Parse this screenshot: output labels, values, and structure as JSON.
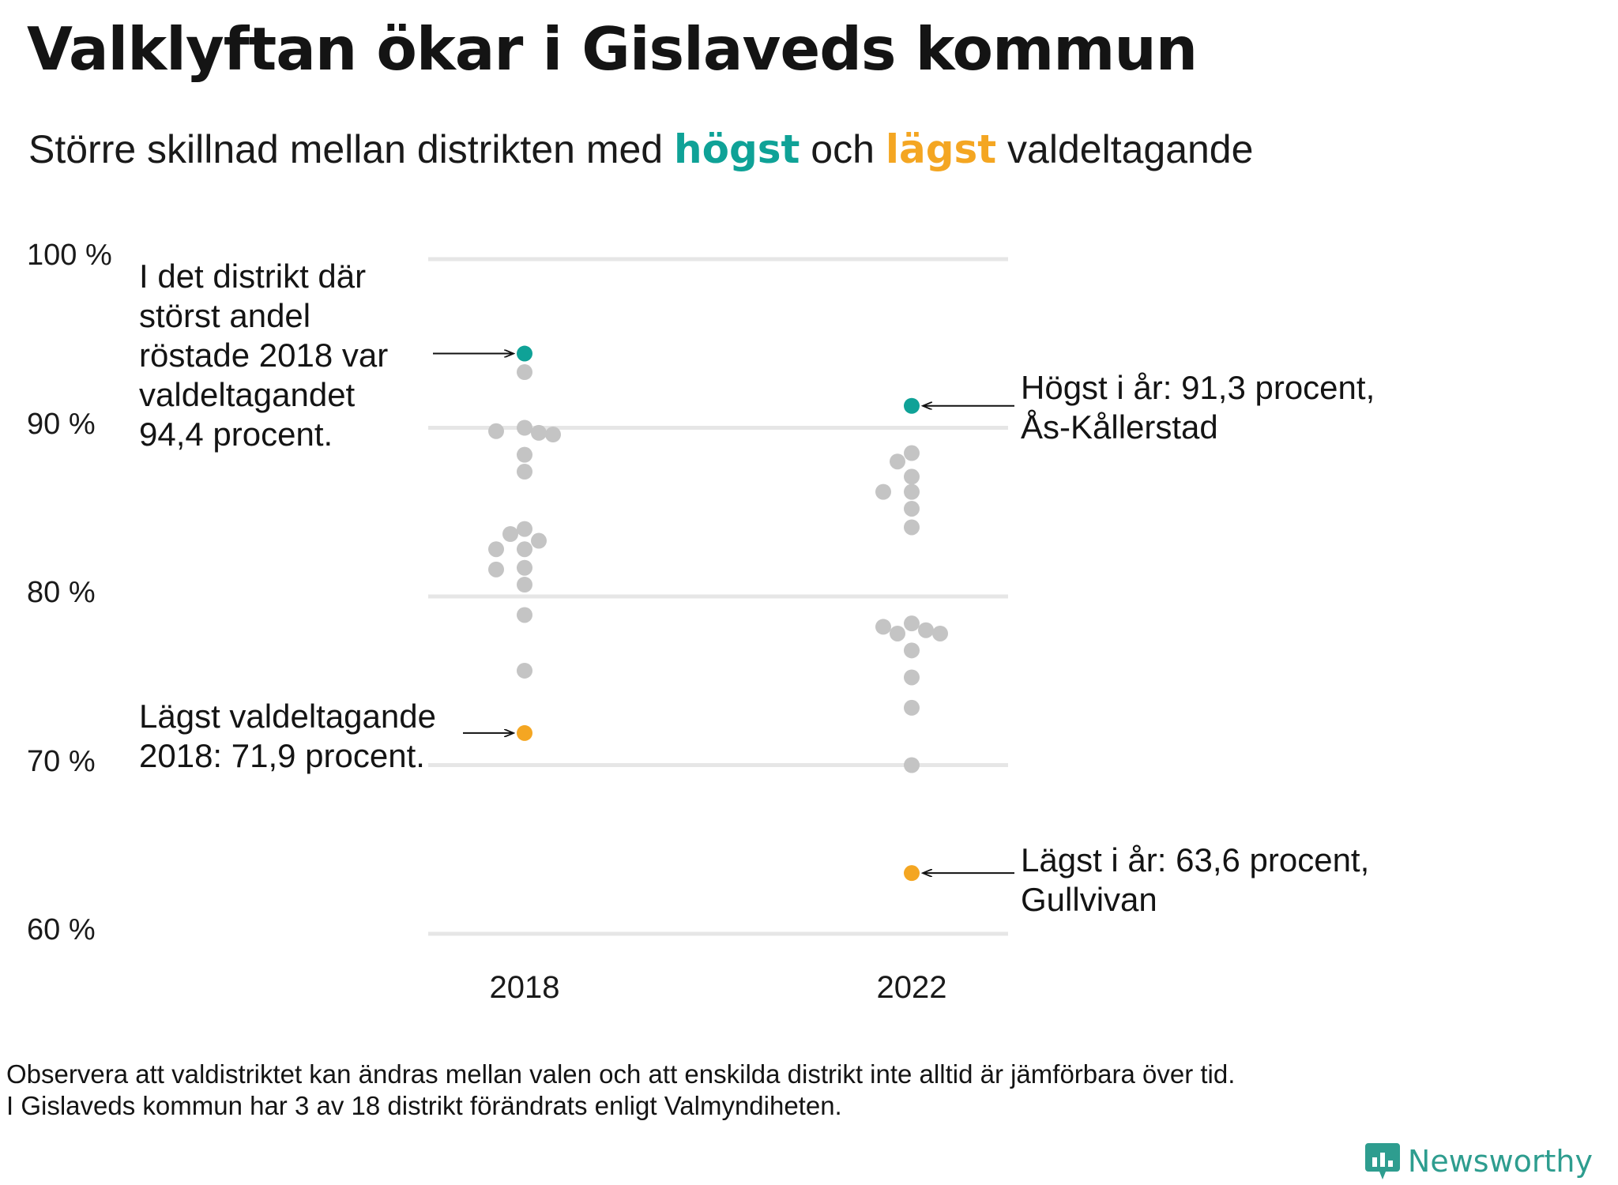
{
  "title": "Valklyftan ökar i Gislaveds kommun",
  "subtitle": {
    "prefix": "Större skillnad mellan distrikten med ",
    "highest": "högst",
    "middle": " och ",
    "lowest": "lägst",
    "suffix": " valdeltagande"
  },
  "chart_data": {
    "type": "scatter",
    "title": "Valklyftan ökar i Gislaveds kommun",
    "ylim": [
      60,
      100
    ],
    "yticks": [
      60,
      70,
      80,
      90,
      100
    ],
    "ytick_labels": [
      "60 %",
      "70 %",
      "80 %",
      "90 %",
      "100 %"
    ],
    "categories": [
      "2018",
      "2022"
    ],
    "grid": true,
    "colors": {
      "highest": "#0fa297",
      "lowest": "#f4a622",
      "other": "#c4c4c4",
      "grid": "#e6e6e6"
    },
    "series": [
      {
        "name": "2018",
        "highest": 94.4,
        "lowest": 71.9,
        "others": [
          93.3,
          90.0,
          89.8,
          89.7,
          89.6,
          88.4,
          87.4,
          84.0,
          83.7,
          83.3,
          82.8,
          82.8,
          81.7,
          81.6,
          80.7,
          78.9,
          75.6
        ]
      },
      {
        "name": "2022",
        "highest": 91.3,
        "lowest": 63.6,
        "others": [
          88.5,
          88.0,
          87.1,
          86.2,
          86.2,
          85.2,
          84.1,
          78.4,
          78.2,
          78.0,
          77.8,
          77.8,
          76.8,
          75.2,
          73.4,
          70.0
        ]
      }
    ],
    "annotations": [
      {
        "series": "2018",
        "target": "highest",
        "text": "I det distrikt där\nstörst andel\nröstade 2018 var\nvaldeltagandet\n94,4 procent."
      },
      {
        "series": "2018",
        "target": "lowest",
        "text": "Lägst valdeltagande\n2018: 71,9 procent."
      },
      {
        "series": "2022",
        "target": "highest",
        "text": "Högst i år: 91,3 procent,\nÅs-Kållerstad"
      },
      {
        "series": "2022",
        "target": "lowest",
        "text": "Lägst i år: 63,6 procent,\nGullvivan"
      }
    ]
  },
  "footnote": "Observera att valdistriktet kan ändras mellan valen och att enskilda distrikt inte alltid är jämförbara över tid.\nI Gislaveds kommun har 3 av 18 distrikt förändrats enligt Valmyndiheten.",
  "brand": {
    "name": "Newsworthy",
    "icon": "newsworthy-logo-icon"
  }
}
